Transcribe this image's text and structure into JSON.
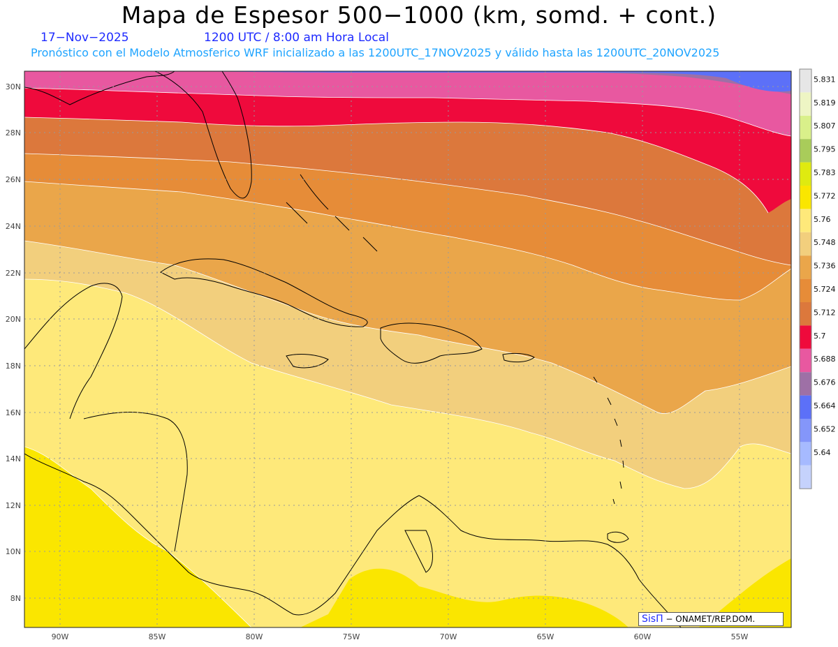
{
  "header": {
    "title": "Mapa de Espesor 500−1000 (km, somd. + cont.)",
    "date": "17−Nov−2025",
    "time": "1200 UTC / 8:00 am Hora Local",
    "description": "Pronóstico con el Modelo Atmosferico WRF inicializado a las 1200UTC_17NOV2025 y válido hasta las  1200UTC_20NOV2025"
  },
  "map": {
    "lat_ticks": [
      "30N",
      "28N",
      "26N",
      "24N",
      "22N",
      "20N",
      "18N",
      "16N",
      "14N",
      "12N",
      "10N",
      "8N"
    ],
    "lon_ticks": [
      "90W",
      "85W",
      "80W",
      "75W",
      "70W",
      "65W",
      "60W",
      "55W"
    ],
    "colorbar": [
      {
        "label": "5.831",
        "color": "#e6e6e6"
      },
      {
        "label": "5.819",
        "color": "#eef5c4"
      },
      {
        "label": "5.807",
        "color": "#d9f08a"
      },
      {
        "label": "5.795",
        "color": "#a9cc5a"
      },
      {
        "label": "5.783",
        "color": "#dfea10"
      },
      {
        "label": "5.772",
        "color": "#fae600"
      },
      {
        "label": "5.76",
        "color": "#fee97a"
      },
      {
        "label": "5.748",
        "color": "#f2cf7d"
      },
      {
        "label": "5.736",
        "color": "#eaa64a"
      },
      {
        "label": "5.724",
        "color": "#e68c38"
      },
      {
        "label": "5.712",
        "color": "#dc783c"
      },
      {
        "label": "5.7",
        "color": "#ef0a3c"
      },
      {
        "label": "5.688",
        "color": "#e858a0"
      },
      {
        "label": "5.676",
        "color": "#9e70a6"
      },
      {
        "label": "5.664",
        "color": "#5c70f8"
      },
      {
        "label": "5.652",
        "color": "#8496fa"
      },
      {
        "label": "5.64",
        "color": "#a6baff"
      },
      {
        "label": "",
        "color": "#c5d2fc"
      }
    ]
  },
  "credit": {
    "brand": "SisΠ",
    "text": " − ONAMET/REP.DOM."
  }
}
